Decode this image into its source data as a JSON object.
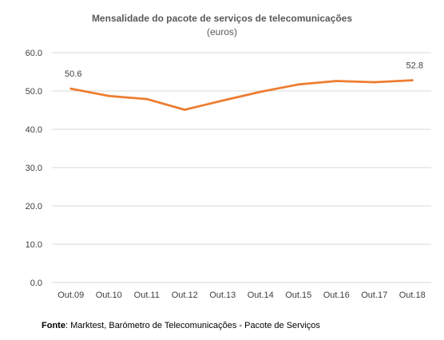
{
  "chart_data": {
    "type": "line",
    "title": "Mensalidade do pacote de serviços de telecomunicações",
    "subtitle": "(euros)",
    "categories": [
      "Out.09",
      "Out.10",
      "Out.11",
      "Out.12",
      "Out.13",
      "Out.14",
      "Out.15",
      "Out.16",
      "Out.17",
      "Out.18"
    ],
    "series": [
      {
        "values": [
          50.6,
          48.7,
          47.9,
          45.1,
          47.5,
          49.8,
          51.7,
          52.6,
          52.3,
          52.8
        ]
      }
    ],
    "ylim": [
      0,
      60
    ],
    "yticks": [
      "0.0",
      "10.0",
      "20.0",
      "30.0",
      "40.0",
      "50.0",
      "60.0"
    ],
    "data_labels": [
      {
        "index": 0,
        "text": "50.6"
      },
      {
        "index": 9,
        "text": "52.8"
      }
    ],
    "grid": true,
    "line_color": "#ED7D31",
    "grid_color": "#D9D9D9"
  },
  "source": {
    "label": "Fonte",
    "text": ": Marktest, Barómetro de Telecomunicações - Pacote de Serviços"
  }
}
